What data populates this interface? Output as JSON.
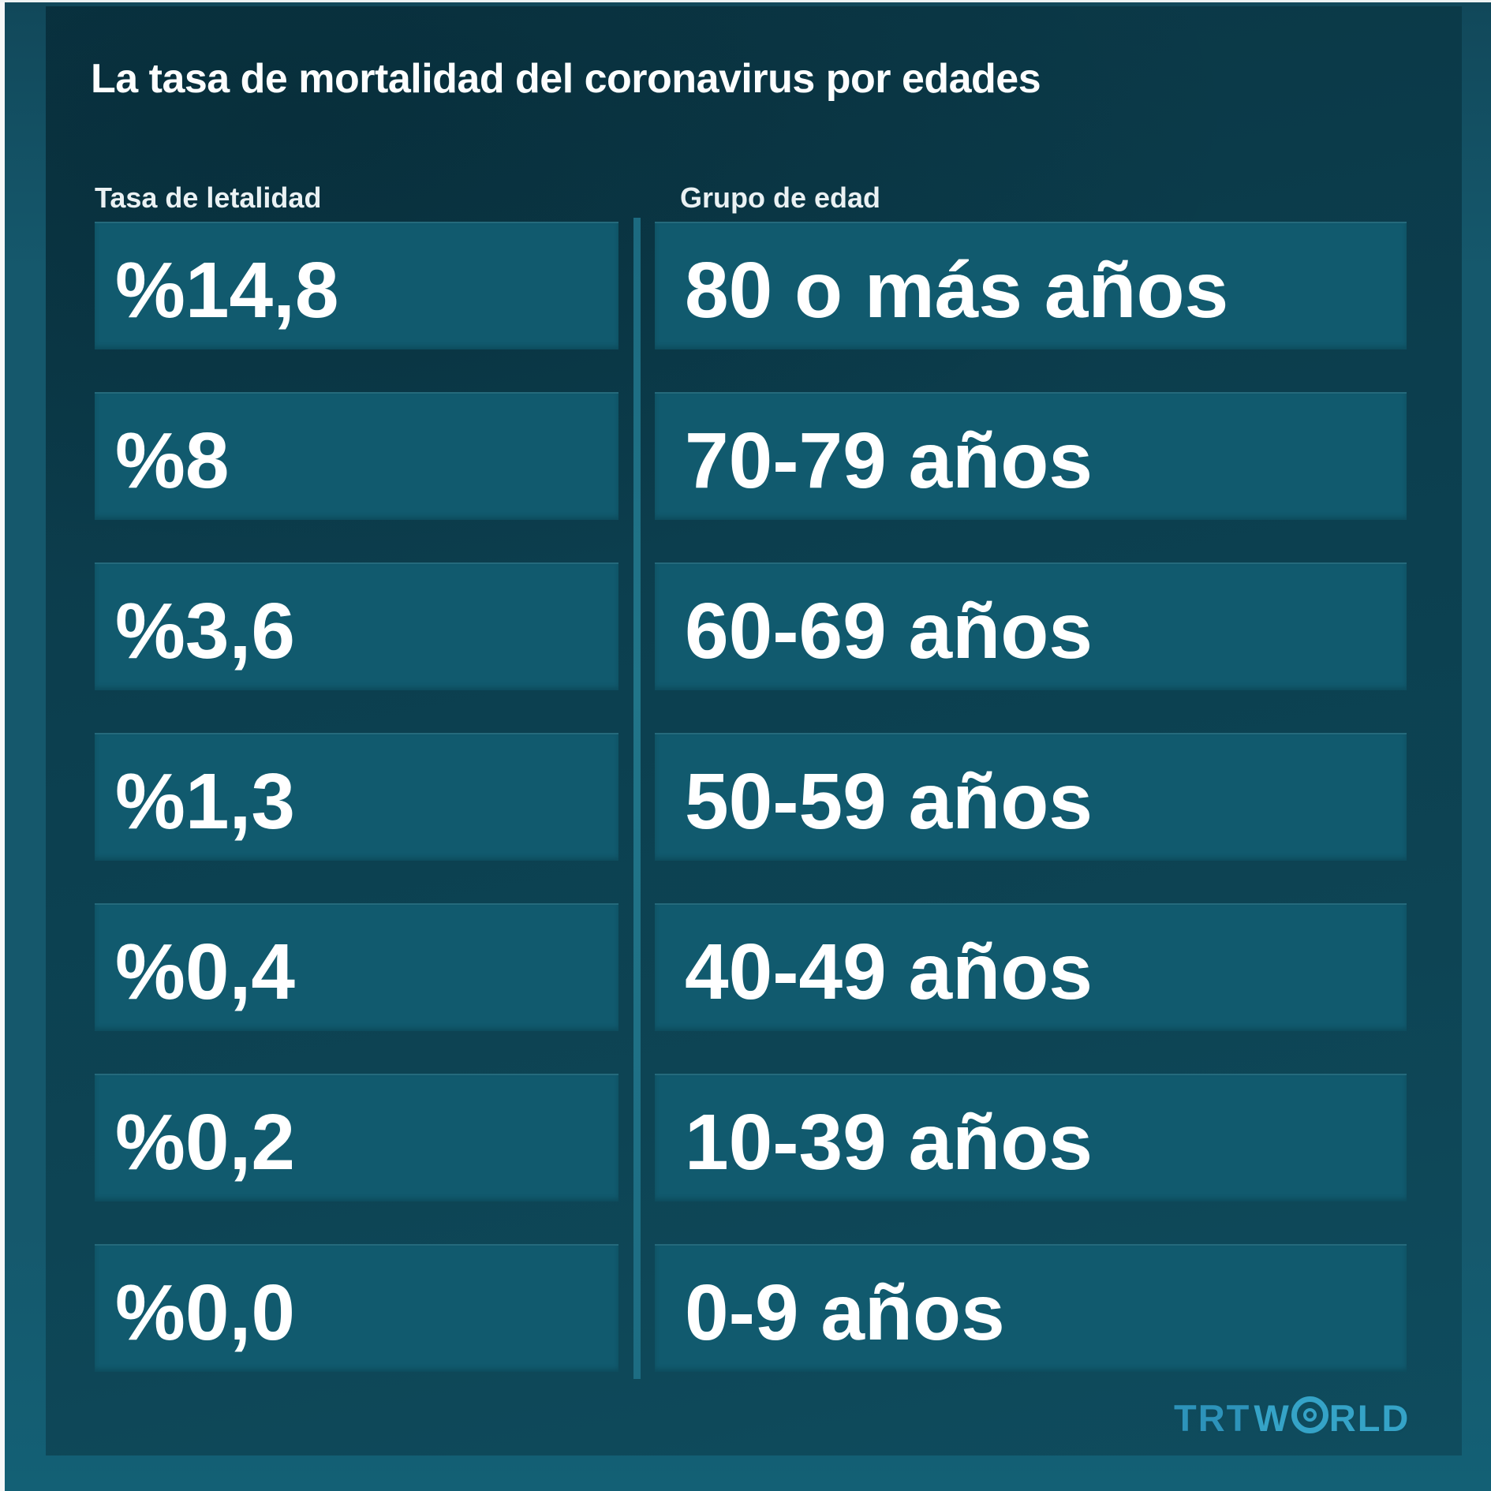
{
  "infographic": {
    "title": "La tasa de mortalidad del coronavirus por edades",
    "columns": {
      "rate_header": "Tasa de letalidad",
      "age_header": "Grupo de edad"
    },
    "rows": [
      {
        "rate": "%14,8",
        "age": "80 o más años"
      },
      {
        "rate": "%8",
        "age": "70-79 años"
      },
      {
        "rate": "%3,6",
        "age": "60-69 años"
      },
      {
        "rate": "%1,3",
        "age": "50-59 años"
      },
      {
        "rate": "%0,4",
        "age": "40-49 años"
      },
      {
        "rate": "%0,2",
        "age": "10-39 años"
      },
      {
        "rate": "%0,0",
        "age": "0-9 años"
      }
    ],
    "branding": {
      "trt": "TRT",
      "world_w": "W",
      "world_rld": "RLD"
    },
    "colors": {
      "frame": "#15586c",
      "panel_dark": "#0b3a49",
      "row_block": "#115a6e",
      "divider_line": "#217589",
      "text": "#ffffff",
      "logo_blue": "#35a3c7"
    }
  },
  "chart_data": {
    "type": "table",
    "title": "La tasa de mortalidad del coronavirus por edades",
    "columns": [
      "Tasa de letalidad",
      "Grupo de edad"
    ],
    "rows": [
      [
        "%14,8",
        "80 o más años"
      ],
      [
        "%8",
        "70-79 años"
      ],
      [
        "%3,6",
        "60-69 años"
      ],
      [
        "%1,3",
        "50-59 años"
      ],
      [
        "%0,4",
        "40-49 años"
      ],
      [
        "%0,2",
        "10-39 años"
      ],
      [
        "%0,0",
        "0-9 años"
      ]
    ],
    "fatality_rate_percent": [
      14.8,
      8,
      3.6,
      1.3,
      0.4,
      0.2,
      0.0
    ],
    "age_groups": [
      "80 o más años",
      "70-79 años",
      "60-69 años",
      "50-59 años",
      "40-49 años",
      "10-39 años",
      "0-9 años"
    ],
    "legend_position": "none",
    "grid": false,
    "source_brand": "TRT WORLD"
  }
}
